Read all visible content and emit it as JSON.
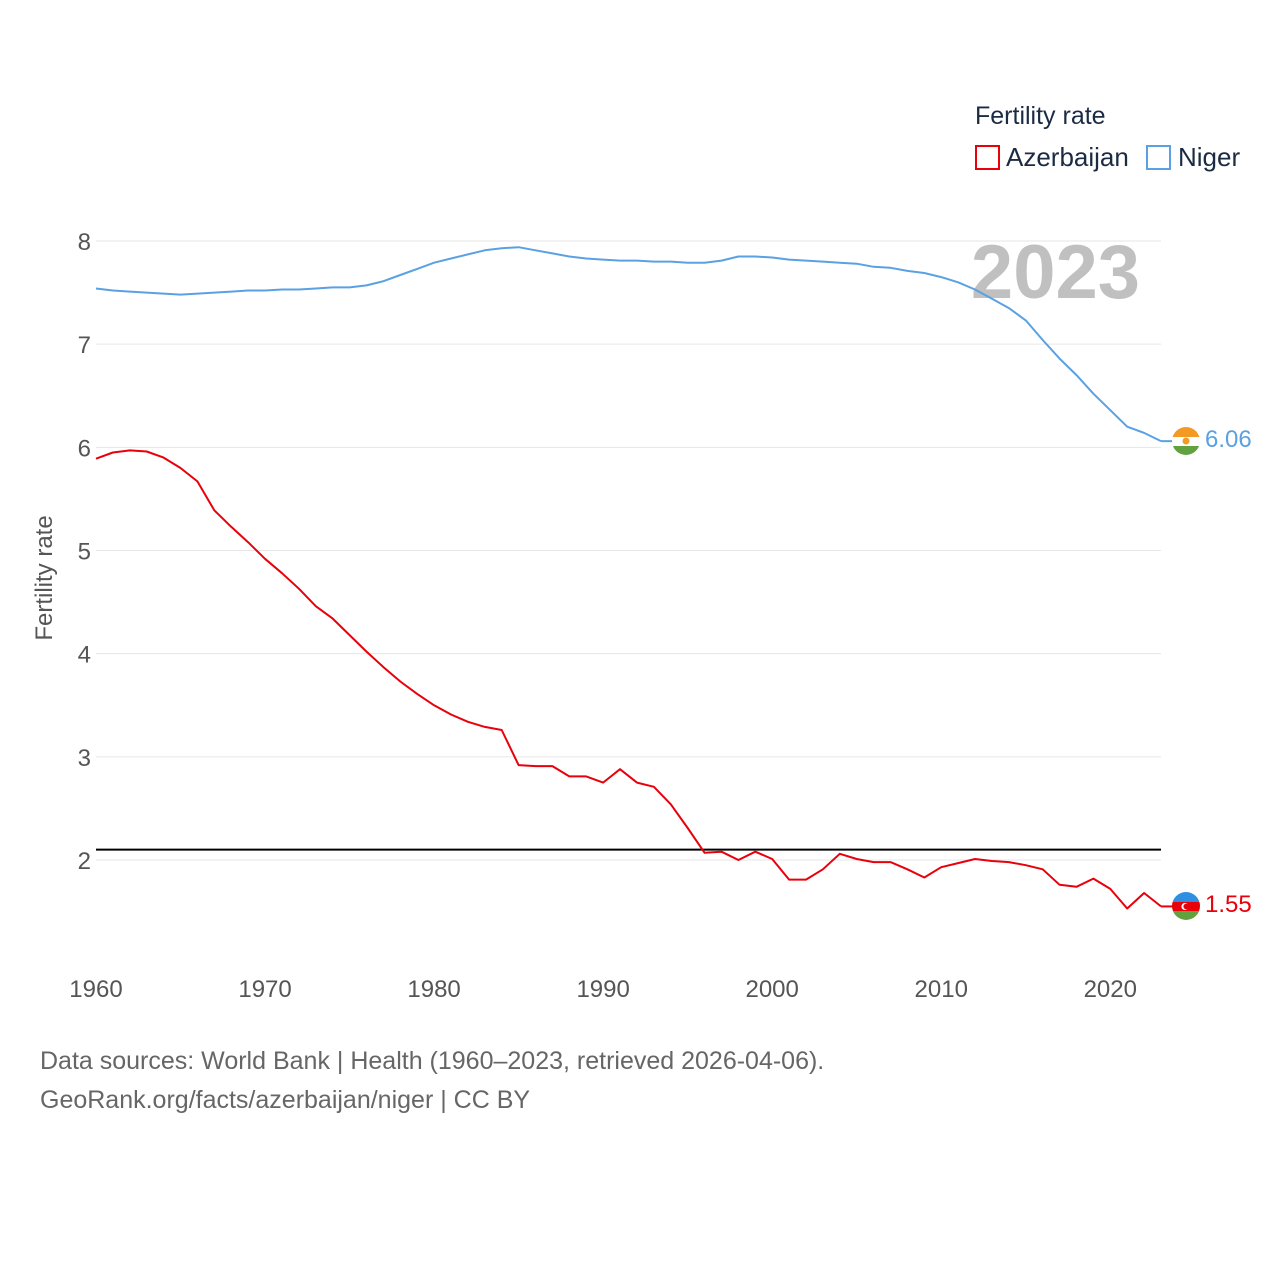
{
  "chart_data": {
    "type": "line",
    "year_label": "2023",
    "legend": {
      "title": "Fertility rate",
      "position": "top-right"
    },
    "ylabel": "Fertility rate",
    "xlim": [
      1960,
      2023
    ],
    "ylim": [
      1.0,
      8.5
    ],
    "x_ticks": [
      1960,
      1970,
      1980,
      1990,
      2000,
      2010,
      2020
    ],
    "y_ticks": [
      2,
      3,
      4,
      5,
      6,
      7,
      8
    ],
    "reference_line": {
      "y": 2.1,
      "color": "#000000"
    },
    "x": [
      1960,
      1961,
      1962,
      1963,
      1964,
      1965,
      1966,
      1967,
      1968,
      1969,
      1970,
      1971,
      1972,
      1973,
      1974,
      1975,
      1976,
      1977,
      1978,
      1979,
      1980,
      1981,
      1982,
      1983,
      1984,
      1985,
      1986,
      1987,
      1988,
      1989,
      1990,
      1991,
      1992,
      1993,
      1994,
      1995,
      1996,
      1997,
      1998,
      1999,
      2000,
      2001,
      2002,
      2003,
      2004,
      2005,
      2006,
      2007,
      2008,
      2009,
      2010,
      2011,
      2012,
      2013,
      2014,
      2015,
      2016,
      2017,
      2018,
      2019,
      2020,
      2021,
      2022,
      2023
    ],
    "series": [
      {
        "name": "Azerbaijan",
        "color": "#e8000b",
        "end_label": "1.55",
        "values": [
          5.89,
          5.95,
          5.97,
          5.96,
          5.9,
          5.8,
          5.67,
          5.39,
          5.23,
          5.08,
          4.92,
          4.78,
          4.63,
          4.46,
          4.34,
          4.18,
          4.02,
          3.87,
          3.73,
          3.61,
          3.5,
          3.41,
          3.34,
          3.29,
          3.26,
          2.92,
          2.91,
          2.91,
          2.81,
          2.81,
          2.75,
          2.88,
          2.75,
          2.71,
          2.54,
          2.31,
          2.07,
          2.08,
          2.0,
          2.08,
          2.01,
          1.81,
          1.81,
          1.91,
          2.06,
          2.01,
          1.98,
          1.98,
          1.91,
          1.83,
          1.93,
          1.97,
          2.01,
          1.99,
          1.98,
          1.95,
          1.91,
          1.76,
          1.74,
          1.82,
          1.72,
          1.53,
          1.68,
          1.55
        ]
      },
      {
        "name": "Niger",
        "color": "#5aa1e3",
        "end_label": "6.06",
        "values": [
          7.54,
          7.52,
          7.51,
          7.5,
          7.49,
          7.48,
          7.49,
          7.5,
          7.51,
          7.52,
          7.52,
          7.53,
          7.53,
          7.54,
          7.55,
          7.55,
          7.57,
          7.61,
          7.67,
          7.73,
          7.79,
          7.83,
          7.87,
          7.91,
          7.93,
          7.94,
          7.91,
          7.88,
          7.85,
          7.83,
          7.82,
          7.81,
          7.81,
          7.8,
          7.8,
          7.79,
          7.79,
          7.81,
          7.85,
          7.85,
          7.84,
          7.82,
          7.81,
          7.8,
          7.79,
          7.78,
          7.75,
          7.74,
          7.71,
          7.69,
          7.65,
          7.6,
          7.53,
          7.44,
          7.35,
          7.23,
          7.04,
          6.86,
          6.7,
          6.52,
          6.36,
          6.2,
          6.14,
          6.06
        ]
      }
    ]
  },
  "footer": {
    "sources": "Data sources: World Bank | Health (1960–2023, retrieved 2026-04-06).",
    "attribution": "GeoRank.org/facts/azerbaijan/niger | CC BY"
  }
}
